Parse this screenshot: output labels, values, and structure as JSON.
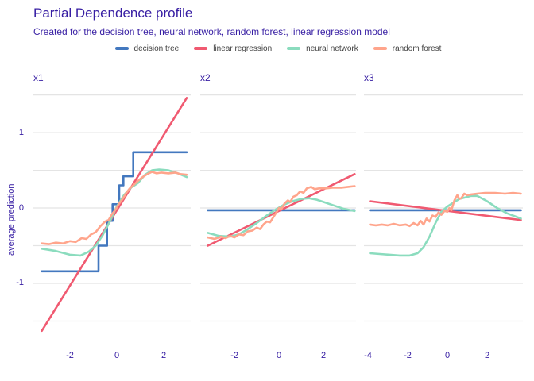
{
  "header": {
    "title": "Partial Dependence profile",
    "subtitle": "Created for the decision tree, neural network, random forest, linear regression model"
  },
  "colors": {
    "title_text": "#371ea3",
    "axis_text": "#371ea3",
    "legend_text": "#404040",
    "gridline": "#e4e4e4",
    "background": "#ffffff",
    "decision_tree": "#4378bf",
    "linear_regression": "#f05a71",
    "neural_network": "#8bdcbe",
    "random_forest": "#ffa58c"
  },
  "legend": {
    "items": [
      {
        "label": "decision tree",
        "color": "#4378bf"
      },
      {
        "label": "linear regression",
        "color": "#f05a71"
      },
      {
        "label": "neural network",
        "color": "#8bdcbe"
      },
      {
        "label": "random forest",
        "color": "#ffa58c"
      }
    ]
  },
  "chart_data": {
    "type": "line",
    "title": "Partial Dependence profile",
    "subtitle": "Created for the decision tree, neural network, random forest, linear regression model",
    "xlabel": "",
    "ylabel": "average prediction",
    "legend_position": "top",
    "grid": true,
    "y_domain": [
      -1.79,
      1.58
    ],
    "y_ticks": [
      1,
      0,
      -1
    ],
    "y_gridlines": [
      1.5,
      1,
      0.5,
      0,
      -0.5,
      -1,
      -1.5
    ],
    "panels": [
      {
        "label": "x1",
        "x_domain": [
          -3.56,
          3.15
        ],
        "x_ticks": [
          -2,
          0,
          2
        ],
        "series": [
          {
            "name": "decision tree",
            "color": "#4378bf",
            "points": [
              [
                -3.2,
                -0.84
              ],
              [
                -0.78,
                -0.84
              ],
              [
                -0.78,
                -0.5
              ],
              [
                -0.42,
                -0.5
              ],
              [
                -0.42,
                -0.17
              ],
              [
                -0.18,
                -0.17
              ],
              [
                -0.18,
                0.05
              ],
              [
                0.1,
                0.05
              ],
              [
                0.1,
                0.3
              ],
              [
                0.28,
                0.3
              ],
              [
                0.28,
                0.42
              ],
              [
                0.7,
                0.42
              ],
              [
                0.7,
                0.74
              ],
              [
                2.98,
                0.74
              ]
            ]
          },
          {
            "name": "linear regression",
            "color": "#f05a71",
            "points": [
              [
                -3.2,
                -1.63
              ],
              [
                2.98,
                1.46
              ]
            ]
          },
          {
            "name": "neural network",
            "color": "#8bdcbe",
            "points": [
              [
                -3.2,
                -0.54
              ],
              [
                -2.6,
                -0.57
              ],
              [
                -2.0,
                -0.62
              ],
              [
                -1.55,
                -0.63
              ],
              [
                -1.2,
                -0.58
              ],
              [
                -0.9,
                -0.5
              ],
              [
                -0.6,
                -0.36
              ],
              [
                -0.3,
                -0.18
              ],
              [
                0,
                0.02
              ],
              [
                0.3,
                0.17
              ],
              [
                0.6,
                0.27
              ],
              [
                0.9,
                0.33
              ],
              [
                1.2,
                0.44
              ],
              [
                1.5,
                0.5
              ],
              [
                1.8,
                0.51
              ],
              [
                2.2,
                0.5
              ],
              [
                2.6,
                0.46
              ],
              [
                2.98,
                0.41
              ]
            ]
          },
          {
            "name": "random forest",
            "color": "#ffa58c",
            "points": [
              [
                -3.2,
                -0.47
              ],
              [
                -2.9,
                -0.48
              ],
              [
                -2.6,
                -0.46
              ],
              [
                -2.3,
                -0.47
              ],
              [
                -2.0,
                -0.44
              ],
              [
                -1.75,
                -0.45
              ],
              [
                -1.5,
                -0.4
              ],
              [
                -1.3,
                -0.41
              ],
              [
                -1.1,
                -0.35
              ],
              [
                -0.9,
                -0.32
              ],
              [
                -0.7,
                -0.24
              ],
              [
                -0.5,
                -0.18
              ],
              [
                -0.35,
                -0.16
              ],
              [
                -0.2,
                -0.08
              ],
              [
                -0.05,
                -0.02
              ],
              [
                0.1,
                0.06
              ],
              [
                0.25,
                0.12
              ],
              [
                0.4,
                0.2
              ],
              [
                0.55,
                0.26
              ],
              [
                0.7,
                0.3
              ],
              [
                0.9,
                0.36
              ],
              [
                1.1,
                0.41
              ],
              [
                1.3,
                0.45
              ],
              [
                1.5,
                0.48
              ],
              [
                1.7,
                0.46
              ],
              [
                1.9,
                0.47
              ],
              [
                2.2,
                0.46
              ],
              [
                2.5,
                0.47
              ],
              [
                2.7,
                0.45
              ],
              [
                2.98,
                0.44
              ]
            ]
          }
        ]
      },
      {
        "label": "x2",
        "x_domain": [
          -3.54,
          3.46
        ],
        "x_ticks": [
          -2,
          0,
          2
        ],
        "series": [
          {
            "name": "decision tree",
            "color": "#4378bf",
            "points": [
              [
                -3.2,
                -0.03
              ],
              [
                3.4,
                -0.03
              ]
            ]
          },
          {
            "name": "linear regression",
            "color": "#f05a71",
            "points": [
              [
                -3.2,
                -0.5
              ],
              [
                3.4,
                0.45
              ]
            ]
          },
          {
            "name": "neural network",
            "color": "#8bdcbe",
            "points": [
              [
                -3.2,
                -0.33
              ],
              [
                -2.7,
                -0.37
              ],
              [
                -2.2,
                -0.38
              ],
              [
                -1.8,
                -0.35
              ],
              [
                -1.4,
                -0.28
              ],
              [
                -1.0,
                -0.2
              ],
              [
                -0.6,
                -0.11
              ],
              [
                -0.2,
                -0.03
              ],
              [
                0.2,
                0.04
              ],
              [
                0.6,
                0.09
              ],
              [
                1.0,
                0.12
              ],
              [
                1.35,
                0.13
              ],
              [
                1.7,
                0.11
              ],
              [
                2.1,
                0.07
              ],
              [
                2.5,
                0.03
              ],
              [
                2.9,
                -0.01
              ],
              [
                3.4,
                -0.04
              ]
            ]
          },
          {
            "name": "random forest",
            "color": "#ffa58c",
            "points": [
              [
                -3.2,
                -0.39
              ],
              [
                -2.9,
                -0.41
              ],
              [
                -2.6,
                -0.38
              ],
              [
                -2.4,
                -0.4
              ],
              [
                -2.2,
                -0.37
              ],
              [
                -2.0,
                -0.39
              ],
              [
                -1.8,
                -0.35
              ],
              [
                -1.6,
                -0.36
              ],
              [
                -1.4,
                -0.31
              ],
              [
                -1.2,
                -0.3
              ],
              [
                -1.0,
                -0.26
              ],
              [
                -0.85,
                -0.28
              ],
              [
                -0.7,
                -0.22
              ],
              [
                -0.55,
                -0.18
              ],
              [
                -0.4,
                -0.19
              ],
              [
                -0.25,
                -0.12
              ],
              [
                -0.1,
                -0.05
              ],
              [
                0.0,
                0.0
              ],
              [
                0.1,
                -0.02
              ],
              [
                0.25,
                0.06
              ],
              [
                0.4,
                0.1
              ],
              [
                0.5,
                0.08
              ],
              [
                0.65,
                0.15
              ],
              [
                0.8,
                0.17
              ],
              [
                0.95,
                0.22
              ],
              [
                1.1,
                0.2
              ],
              [
                1.25,
                0.26
              ],
              [
                1.45,
                0.28
              ],
              [
                1.6,
                0.25
              ],
              [
                1.8,
                0.26
              ],
              [
                2.1,
                0.26
              ],
              [
                2.4,
                0.27
              ],
              [
                2.8,
                0.27
              ],
              [
                3.1,
                0.28
              ],
              [
                3.4,
                0.29
              ]
            ]
          }
        ]
      },
      {
        "label": "x3",
        "x_domain": [
          -4.2,
          3.8
        ],
        "x_ticks": [
          -4,
          -2,
          0,
          2
        ],
        "series": [
          {
            "name": "decision tree",
            "color": "#4378bf",
            "points": [
              [
                -3.9,
                -0.03
              ],
              [
                3.7,
                -0.03
              ]
            ]
          },
          {
            "name": "linear regression",
            "color": "#f05a71",
            "points": [
              [
                -3.9,
                0.09
              ],
              [
                3.7,
                -0.16
              ]
            ]
          },
          {
            "name": "neural network",
            "color": "#8bdcbe",
            "points": [
              [
                -3.9,
                -0.6
              ],
              [
                -3.4,
                -0.61
              ],
              [
                -2.9,
                -0.62
              ],
              [
                -2.4,
                -0.63
              ],
              [
                -1.9,
                -0.63
              ],
              [
                -1.5,
                -0.6
              ],
              [
                -1.2,
                -0.52
              ],
              [
                -0.9,
                -0.38
              ],
              [
                -0.6,
                -0.2
              ],
              [
                -0.3,
                -0.05
              ],
              [
                0,
                0.02
              ],
              [
                0.3,
                0.07
              ],
              [
                0.6,
                0.12
              ],
              [
                0.9,
                0.14
              ],
              [
                1.2,
                0.16
              ],
              [
                1.5,
                0.16
              ],
              [
                2.0,
                0.09
              ],
              [
                2.5,
                0.0
              ],
              [
                3.0,
                -0.07
              ],
              [
                3.4,
                -0.11
              ],
              [
                3.7,
                -0.14
              ]
            ]
          },
          {
            "name": "random forest",
            "color": "#ffa58c",
            "points": [
              [
                -3.9,
                -0.22
              ],
              [
                -3.6,
                -0.23
              ],
              [
                -3.3,
                -0.22
              ],
              [
                -3.0,
                -0.23
              ],
              [
                -2.7,
                -0.21
              ],
              [
                -2.4,
                -0.23
              ],
              [
                -2.1,
                -0.22
              ],
              [
                -1.9,
                -0.24
              ],
              [
                -1.7,
                -0.2
              ],
              [
                -1.5,
                -0.23
              ],
              [
                -1.35,
                -0.17
              ],
              [
                -1.2,
                -0.22
              ],
              [
                -1.05,
                -0.14
              ],
              [
                -0.9,
                -0.18
              ],
              [
                -0.75,
                -0.1
              ],
              [
                -0.6,
                -0.12
              ],
              [
                -0.45,
                -0.06
              ],
              [
                -0.3,
                -0.09
              ],
              [
                -0.15,
                -0.04
              ],
              [
                0.0,
                -0.05
              ],
              [
                0.1,
                0.0
              ],
              [
                0.2,
                -0.03
              ],
              [
                0.35,
                0.1
              ],
              [
                0.5,
                0.17
              ],
              [
                0.6,
                0.12
              ],
              [
                0.7,
                0.13
              ],
              [
                0.85,
                0.19
              ],
              [
                1.0,
                0.17
              ],
              [
                1.2,
                0.18
              ],
              [
                1.5,
                0.19
              ],
              [
                1.9,
                0.2
              ],
              [
                2.4,
                0.2
              ],
              [
                2.9,
                0.19
              ],
              [
                3.3,
                0.2
              ],
              [
                3.7,
                0.19
              ]
            ]
          }
        ]
      }
    ]
  }
}
